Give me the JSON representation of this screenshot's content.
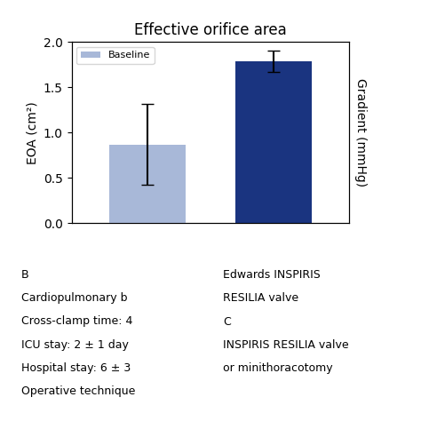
{
  "chart_data": {
    "type": "bar",
    "title": "Effective orifice area",
    "ylabel": "EOA (cm²)",
    "y2label": "Gradient (mmHg)",
    "categories": [
      null,
      null
    ],
    "series": [
      {
        "name": "Baseline",
        "color": "#a8b8d8",
        "values": [
          0.87,
          null
        ],
        "errors": [
          0.45,
          null
        ]
      },
      {
        "color": "#1a3480",
        "values": [
          null,
          1.79
        ],
        "errors": [
          null,
          0.12
        ]
      }
    ],
    "ylim": [
      0,
      2.0
    ],
    "yticks": [
      0.0,
      0.5,
      1.0,
      1.5,
      2.0
    ],
    "y2lim": [
      0,
      2.0
    ],
    "y2ticks": [],
    "legend": "upper left",
    "annotations": [
      "B",
      "Cardiopulmonary b",
      "Cross-clamp time: 4",
      "ICU stay: 2 ± 1 day",
      "Hospital stay: 6 ± 3",
      "Operative technique",
      "Edwards INSPIRIS",
      "RESILIA valve",
      "C",
      "INSPIRIS RESILIA valve",
      "or minithoracotomy"
    ]
  }
}
